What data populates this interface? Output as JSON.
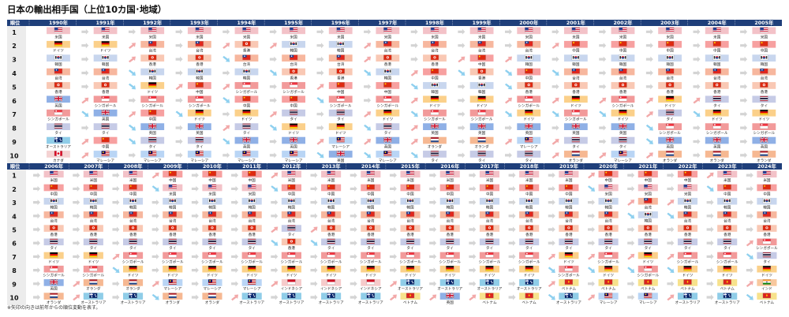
{
  "title": "日本の輸出相手国（上位10カ国･地域）",
  "note": "※矢印の向きは前年からの順位変動を表す。",
  "rank_header": "順位",
  "chart_data": {
    "type": "table",
    "ranks": [
      1,
      2,
      3,
      4,
      5,
      6,
      7,
      8,
      9,
      10
    ],
    "panels": [
      {
        "years": [
          "1990年",
          "1991年",
          "1992年",
          "1993年",
          "1994年",
          "1995年",
          "1996年",
          "1997年",
          "1998年",
          "1999年",
          "2000年",
          "2001年",
          "2002年",
          "2003年",
          "2004年",
          "2005年"
        ],
        "columns": [
          [
            "米国",
            "ドイツ",
            "韓国",
            "台湾",
            "香港",
            "英国",
            "シンガポール",
            "タイ",
            "オーストラリア",
            "カナダ"
          ],
          [
            "米国",
            "ドイツ",
            "韓国",
            "台湾",
            "香港",
            "シンガポール",
            "英国",
            "タイ",
            "中国",
            "マレーシア"
          ],
          [
            "米国",
            "台湾",
            "香港",
            "韓国",
            "ドイツ",
            "シンガポール",
            "中国",
            "英国",
            "タイ",
            "マレーシア"
          ],
          [
            "米国",
            "台湾",
            "香港",
            "韓国",
            "中国",
            "シンガポール",
            "ドイツ",
            "英国",
            "タイ",
            "マレーシア"
          ],
          [
            "米国",
            "香港",
            "台湾",
            "韓国",
            "シンガポール",
            "中国",
            "ドイツ",
            "タイ",
            "英国",
            "マレーシア"
          ],
          [
            "米国",
            "韓国",
            "台湾",
            "香港",
            "シンガポール",
            "中国",
            "タイ",
            "ドイツ",
            "英国",
            "マレーシア"
          ],
          [
            "米国",
            "韓国",
            "台湾",
            "香港",
            "中国",
            "シンガポール",
            "タイ",
            "ドイツ",
            "マレーシア",
            "英国"
          ],
          [
            "米国",
            "台湾",
            "香港",
            "韓国",
            "中国",
            "シンガポール",
            "ドイツ",
            "タイ",
            "英国",
            "マレーシア"
          ],
          [
            "米国",
            "台湾",
            "香港",
            "中国",
            "韓国",
            "ドイツ",
            "シンガポール",
            "英国",
            "オランダ",
            "タイ"
          ],
          [
            "米国",
            "台湾",
            "中国",
            "香港",
            "韓国",
            "ドイツ",
            "シンガポール",
            "英国",
            "オランダ",
            "タイ"
          ],
          [
            "米国",
            "台湾",
            "韓国",
            "中国",
            "香港",
            "シンガポール",
            "ドイツ",
            "英国",
            "マレーシア",
            "タイ"
          ],
          [
            "米国",
            "中国",
            "韓国",
            "台湾",
            "香港",
            "ドイツ",
            "シンガポール",
            "英国",
            "タイ",
            "オランダ"
          ],
          [
            "米国",
            "中国",
            "韓国",
            "台湾",
            "香港",
            "シンガポール",
            "ドイツ",
            "英国",
            "タイ",
            "マレーシア"
          ],
          [
            "米国",
            "中国",
            "韓国",
            "台湾",
            "香港",
            "ドイツ",
            "タイ",
            "シンガポール",
            "英国",
            "オランダ"
          ],
          [
            "米国",
            "中国",
            "韓国",
            "台湾",
            "香港",
            "タイ",
            "ドイツ",
            "シンガポール",
            "英国",
            "オランダ"
          ],
          [
            "米国",
            "中国",
            "韓国",
            "台湾",
            "香港",
            "タイ",
            "ドイツ",
            "シンガポール",
            "英国",
            "オランダ"
          ]
        ]
      },
      {
        "years": [
          "2006年",
          "2007年",
          "2008年",
          "2009年",
          "2010年",
          "2011年",
          "2012年",
          "2013年",
          "2014年",
          "2015年",
          "2016年",
          "2017年",
          "2018年",
          "2019年",
          "2020年",
          "2021年",
          "2022年",
          "2023年",
          "2024年"
        ],
        "columns": [
          [
            "米国",
            "中国",
            "韓国",
            "台湾",
            "香港",
            "タイ",
            "ドイツ",
            "シンガポール",
            "英国",
            "オランダ"
          ],
          [
            "米国",
            "中国",
            "韓国",
            "台湾",
            "香港",
            "タイ",
            "ドイツ",
            "シンガポール",
            "オランダ",
            "オーストラリア"
          ],
          [
            "米国",
            "中国",
            "韓国",
            "台湾",
            "香港",
            "タイ",
            "シンガポール",
            "ドイツ",
            "オランダ",
            "オーストラリア"
          ],
          [
            "中国",
            "米国",
            "韓国",
            "台湾",
            "香港",
            "タイ",
            "シンガポール",
            "ドイツ",
            "マレーシア",
            "オランダ"
          ],
          [
            "中国",
            "米国",
            "韓国",
            "台湾",
            "香港",
            "タイ",
            "シンガポール",
            "ドイツ",
            "マレーシア",
            "オランダ"
          ],
          [
            "中国",
            "米国",
            "韓国",
            "台湾",
            "香港",
            "タイ",
            "シンガポール",
            "ドイツ",
            "マレーシア",
            "オーストラリア"
          ],
          [
            "米国",
            "中国",
            "韓国",
            "台湾",
            "タイ",
            "香港",
            "シンガポール",
            "ドイツ",
            "インドネシア",
            "オーストラリア"
          ],
          [
            "米国",
            "中国",
            "韓国",
            "台湾",
            "香港",
            "タイ",
            "シンガポール",
            "ドイツ",
            "インドネシア",
            "オーストラリア"
          ],
          [
            "米国",
            "中国",
            "韓国",
            "台湾",
            "香港",
            "タイ",
            "シンガポール",
            "ドイツ",
            "インドネシア",
            "オーストラリア"
          ],
          [
            "米国",
            "中国",
            "韓国",
            "台湾",
            "香港",
            "タイ",
            "シンガポール",
            "ドイツ",
            "オーストラリア",
            "ベトナム"
          ],
          [
            "米国",
            "中国",
            "韓国",
            "台湾",
            "香港",
            "タイ",
            "シンガポール",
            "ドイツ",
            "オーストラリア",
            "英国"
          ],
          [
            "米国",
            "中国",
            "韓国",
            "台湾",
            "香港",
            "タイ",
            "シンガポール",
            "ドイツ",
            "オーストラリア",
            "ベトナム"
          ],
          [
            "米国",
            "中国",
            "韓国",
            "台湾",
            "香港",
            "タイ",
            "シンガポール",
            "ドイツ",
            "オーストラリア",
            "ベトナム"
          ],
          [
            "米国",
            "中国",
            "韓国",
            "台湾",
            "香港",
            "タイ",
            "ドイツ",
            "シンガポール",
            "ベトナム",
            "オーストラリア"
          ],
          [
            "中国",
            "米国",
            "韓国",
            "台湾",
            "香港",
            "タイ",
            "シンガポール",
            "ドイツ",
            "ベトナム",
            "マレーシア"
          ],
          [
            "中国",
            "米国",
            "台湾",
            "韓国",
            "香港",
            "タイ",
            "ドイツ",
            "シンガポール",
            "ベトナム",
            "マレーシア"
          ],
          [
            "中国",
            "米国",
            "韓国",
            "台湾",
            "香港",
            "タイ",
            "シンガポール",
            "ドイツ",
            "ベトナム",
            "オーストラリア"
          ],
          [
            "米国",
            "中国",
            "韓国",
            "台湾",
            "香港",
            "タイ",
            "シンガポール",
            "ドイツ",
            "ベトナム",
            "オーストラリア"
          ],
          [
            "米国",
            "中国",
            "韓国",
            "台湾",
            "香港",
            "シンガポール",
            "タイ",
            "ドイツ",
            "インド",
            "ベトナム"
          ]
        ]
      }
    ]
  },
  "colors": {
    "header_bg": "#1f3f7a",
    "arrow_up": "#f2a9a9",
    "arrow_down": "#8fd0ef",
    "arrow_same": "#d4d4d4",
    "rank_col_bg": "#ececec"
  },
  "country_colors": {
    "米国": "#f3c2c8",
    "中国": "#f7a0a0",
    "韓国": "#c8d6ee",
    "台湾": "#f7b79e",
    "香港": "#f9c8b4",
    "ドイツ": "#fbd08a",
    "シンガポール": "#f29a9a",
    "タイ": "#c6cbe6",
    "英国": "#8fb0e6",
    "オランダ": "#f6b892",
    "マレーシア": "#b9d5f5",
    "オーストラリア": "#8fcde8",
    "カナダ": "#f4d2d2",
    "インドネシア": "#f6cbcb",
    "ベトナム": "#f7e28c",
    "インド": "#f8c89e"
  },
  "country_icons": {
    "米国": "us-flag-icon",
    "中国": "china-flag-icon",
    "韓国": "korea-flag-icon",
    "台湾": "taiwan-flag-icon",
    "香港": "hongkong-flag-icon",
    "ドイツ": "germany-flag-icon",
    "シンガポール": "singapore-flag-icon",
    "タイ": "thailand-flag-icon",
    "英国": "uk-flag-icon",
    "オランダ": "netherlands-flag-icon",
    "マレーシア": "malaysia-flag-icon",
    "オーストラリア": "australia-flag-icon",
    "カナダ": "canada-flag-icon",
    "インドネシア": "indonesia-flag-icon",
    "ベトナム": "vietnam-flag-icon",
    "インド": "india-flag-icon"
  }
}
